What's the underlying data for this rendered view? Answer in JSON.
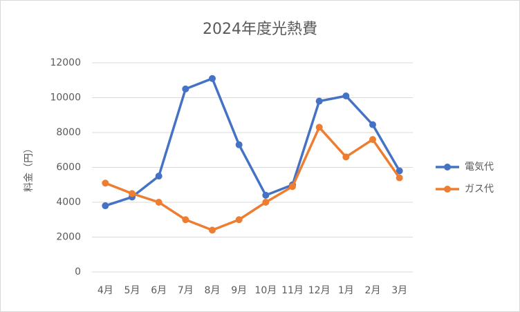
{
  "chart_data": {
    "type": "line",
    "title": "2024年度光熱費",
    "y_label": "料金（円）",
    "categories": [
      "4月",
      "5月",
      "6月",
      "7月",
      "8月",
      "9月",
      "10月",
      "11月",
      "12月",
      "1月",
      "2月",
      "3月"
    ],
    "series": [
      {
        "name": "電気代",
        "color": "#4472c4",
        "values": [
          3800,
          4300,
          5500,
          10500,
          11100,
          7300,
          4400,
          5000,
          9800,
          10100,
          8450,
          5800
        ]
      },
      {
        "name": "ガス代",
        "color": "#ed7d31",
        "values": [
          5100,
          4500,
          4000,
          3000,
          2400,
          3000,
          4000,
          4900,
          8300,
          6600,
          7600,
          5400
        ]
      }
    ],
    "ylim": [
      0,
      12000
    ],
    "yticks": [
      0,
      2000,
      4000,
      6000,
      8000,
      10000,
      12000
    ],
    "grid": true,
    "legend": "right"
  }
}
